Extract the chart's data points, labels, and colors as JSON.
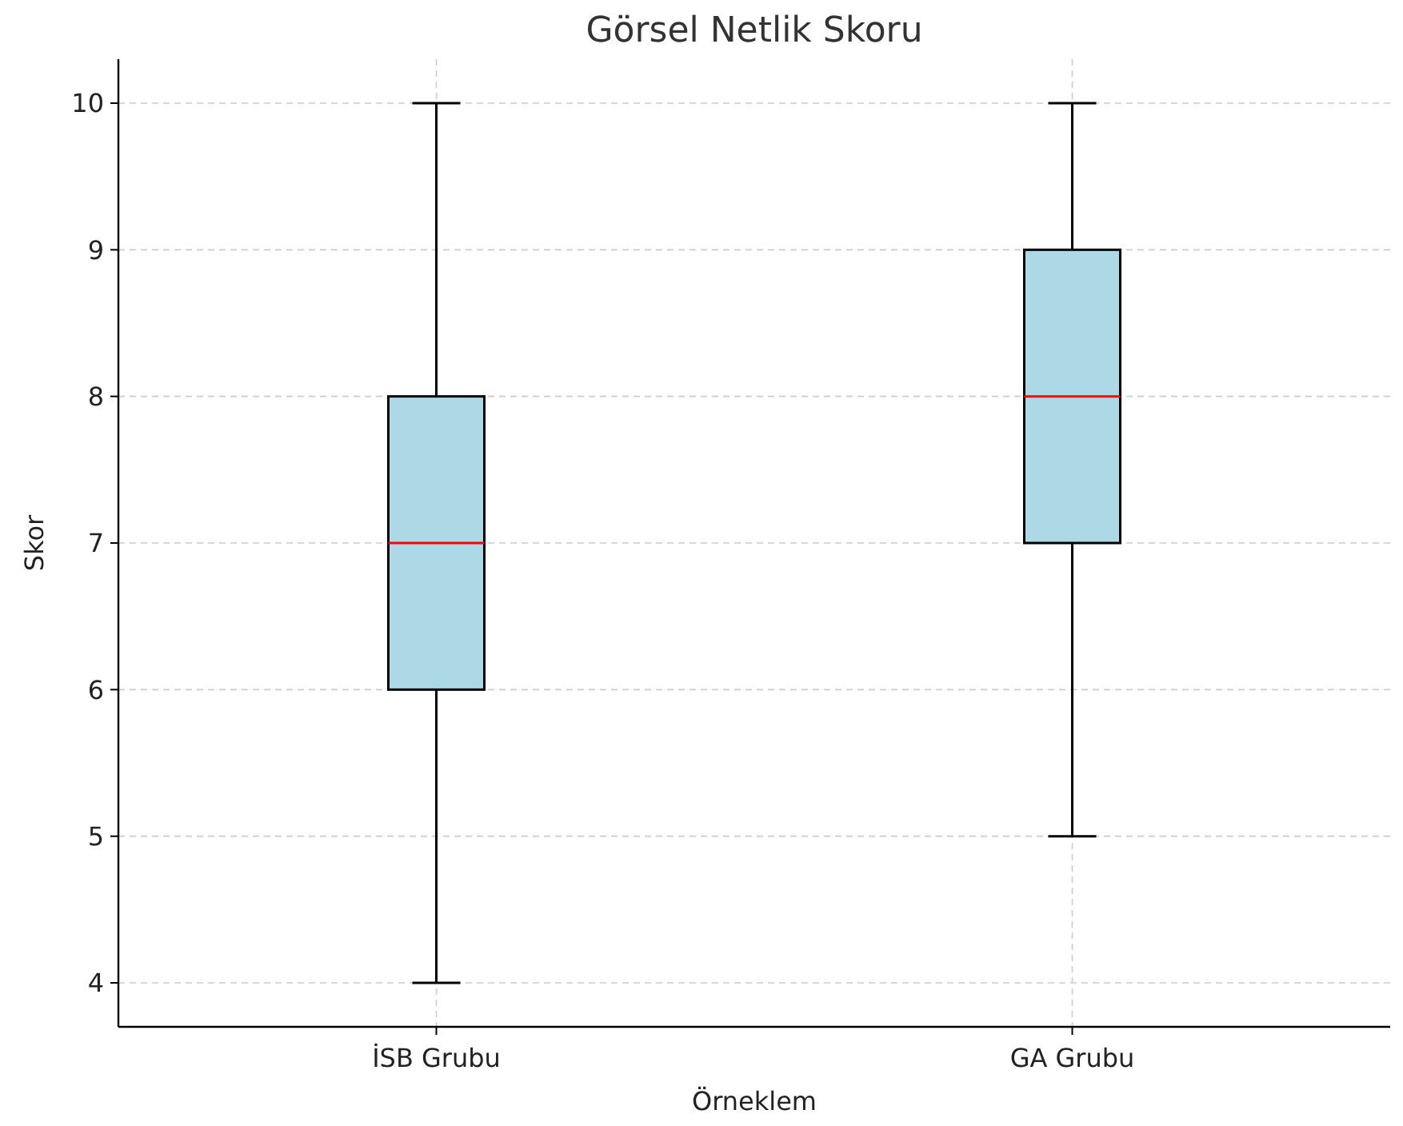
{
  "chart_data": {
    "type": "box",
    "title": "Görsel Netlik Skoru",
    "xlabel": "Örneklem",
    "ylabel": "Skor",
    "categories": [
      "İSB Grubu",
      "GA Grubu"
    ],
    "series": [
      {
        "color": "#add8e6",
        "boxes": [
          {
            "low": 4,
            "q1": 6,
            "median": 7,
            "q3": 8,
            "high": 10
          },
          {
            "low": 5,
            "q1": 7,
            "median": 8,
            "q3": 9,
            "high": 10
          }
        ]
      }
    ],
    "ylim": [
      3.7,
      10.3
    ],
    "yticks": [
      4,
      5,
      6,
      7,
      8,
      9,
      10
    ],
    "grid": true
  }
}
